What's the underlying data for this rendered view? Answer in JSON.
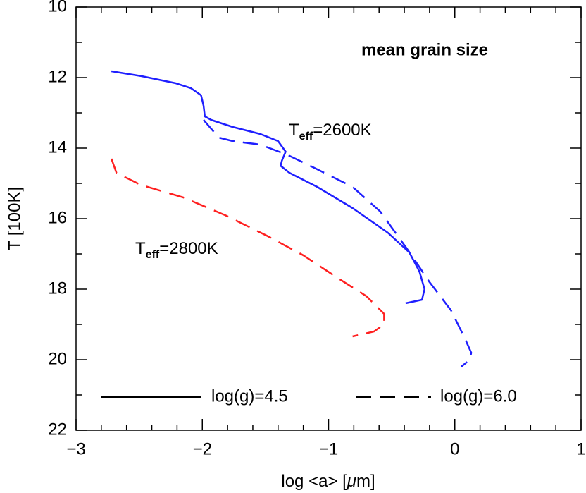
{
  "chart_data": {
    "type": "line",
    "title": "mean grain size",
    "xlabel": {
      "pre": "log <a> [",
      "mu": "μ",
      "post": "m]"
    },
    "ylabel": "T [100K]",
    "xlim": [
      -3,
      1
    ],
    "ylim": [
      22,
      10
    ],
    "xticks": [
      {
        "value": -3,
        "label": "−3"
      },
      {
        "value": -2,
        "label": "−2"
      },
      {
        "value": -1,
        "label": "−1"
      },
      0,
      1
    ],
    "yticks": [
      10,
      12,
      14,
      16,
      18,
      20,
      22
    ],
    "xminorticks": [
      -2.8,
      -2.6,
      -2.4,
      -2.2,
      -1.8,
      -1.6,
      -1.4,
      -1.2,
      -0.8,
      -0.6,
      -0.4,
      -0.2,
      0.2,
      0.4,
      0.6,
      0.8
    ],
    "yminorticks": [
      11,
      13,
      15,
      17,
      19,
      21
    ],
    "series": [
      {
        "color": "#1f1fff",
        "dashed": false,
        "x": [
          -2.72,
          -2.48,
          -2.21,
          -2.09,
          -2.01,
          -1.99,
          -1.98,
          -1.93,
          -1.76,
          -1.54,
          -1.4,
          -1.34,
          -1.37,
          -1.38,
          -1.31,
          -1.09,
          -0.81,
          -0.53,
          -0.36,
          -0.28,
          -0.24,
          -0.26,
          -0.39
        ],
        "values": [
          11.82,
          11.96,
          12.16,
          12.3,
          12.5,
          12.8,
          13.1,
          13.2,
          13.4,
          13.6,
          13.8,
          14.1,
          14.36,
          14.5,
          14.7,
          15.1,
          15.7,
          16.4,
          16.96,
          17.5,
          18.0,
          18.3,
          18.4
        ]
      },
      {
        "color": "#1f1fff",
        "dashed": true,
        "x": [
          -1.99,
          -1.87,
          -1.76,
          -1.54,
          -1.32,
          -1.09,
          -0.81,
          -0.59,
          -0.37,
          -0.2,
          -0.03,
          0.08,
          0.13,
          0.12,
          0.05
        ],
        "values": [
          13.2,
          13.7,
          13.8,
          13.9,
          14.2,
          14.6,
          15.1,
          15.8,
          16.9,
          17.8,
          18.6,
          19.4,
          19.8,
          20.0,
          20.2
        ]
      },
      {
        "color": "#ff2020",
        "dashed": true,
        "x": [
          -2.72,
          -2.68,
          -2.49,
          -2.15,
          -1.82,
          -1.48,
          -1.2,
          -0.92,
          -0.7,
          -0.56,
          -0.56,
          -0.64,
          -0.81
        ],
        "values": [
          14.3,
          14.7,
          15.04,
          15.4,
          15.9,
          16.5,
          17.04,
          17.7,
          18.2,
          18.7,
          19.0,
          19.2,
          19.34
        ]
      }
    ],
    "legend": [
      {
        "label": "log(g)=4.5",
        "dashed": false
      },
      {
        "label": "log(g)=6.0",
        "dashed": true
      }
    ],
    "annotations": [
      {
        "main": "T",
        "sub": "eff",
        "rest": "=2600K"
      },
      {
        "main": "T",
        "sub": "eff",
        "rest": "=2800K"
      }
    ]
  }
}
